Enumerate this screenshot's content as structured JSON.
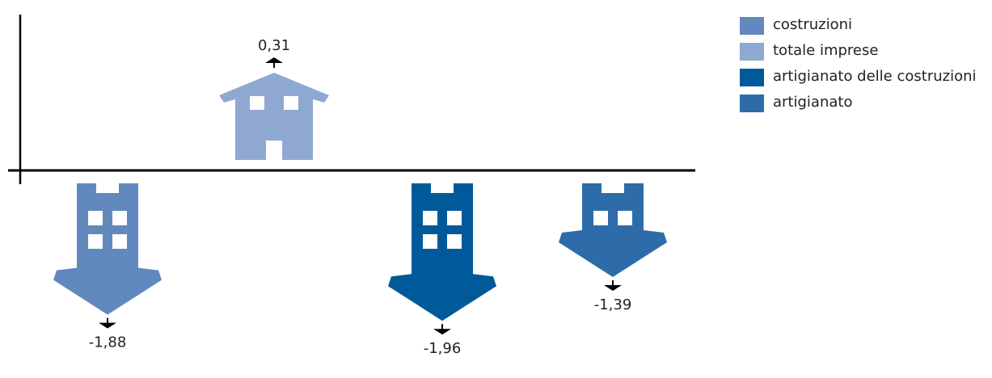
{
  "chart_data": {
    "type": "bar",
    "categories": [
      "costruzioni",
      "totale imprese",
      "artigianato delle costruzioni",
      "artigianato"
    ],
    "values": [
      -1.88,
      0.31,
      -1.96,
      -1.39
    ],
    "value_labels": [
      "-1,88",
      "0,31",
      "-1,96",
      "-1,39"
    ],
    "colors": [
      "#6189be",
      "#8fa8d2",
      "#005a9a",
      "#2e6ca9"
    ],
    "grid": false,
    "legend_position": "top-right"
  }
}
